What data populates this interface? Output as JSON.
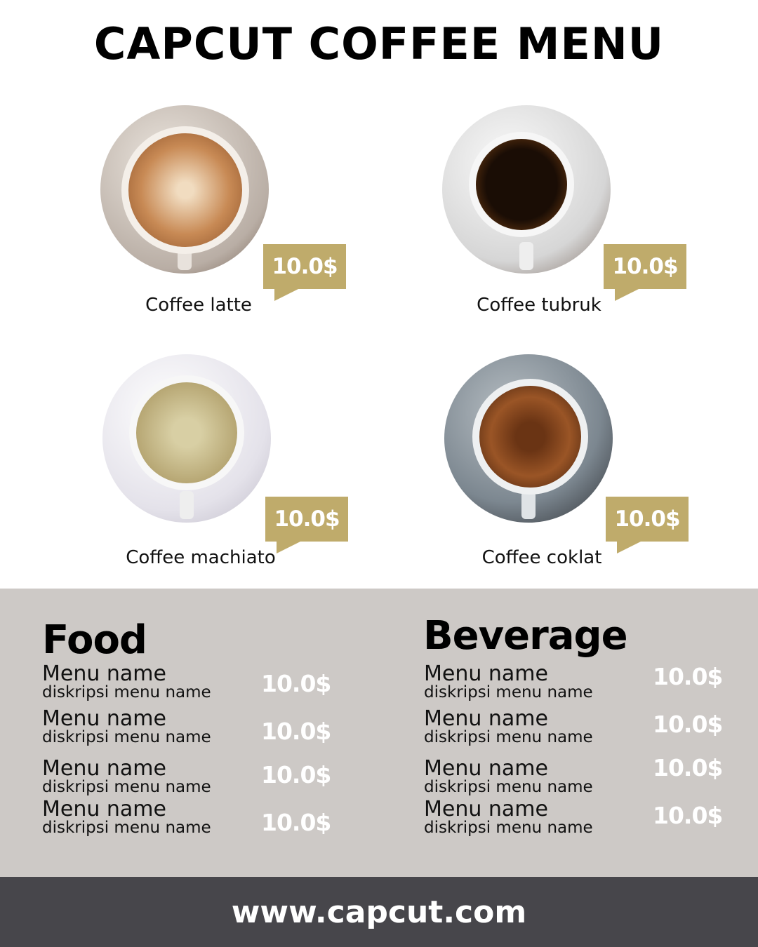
{
  "title": "CAPCUT COFFEE MENU",
  "colors": {
    "accent": "#bfab6b",
    "band": "#cdc9c6",
    "footer": "#47464b"
  },
  "coffees": [
    {
      "name": "Coffee latte",
      "price": "10.0$"
    },
    {
      "name": "Coffee tubruk",
      "price": "10.0$"
    },
    {
      "name": "Coffee machiato",
      "price": "10.0$"
    },
    {
      "name": "Coffee coklat",
      "price": "10.0$"
    }
  ],
  "food": {
    "heading": "Food",
    "items": [
      {
        "name": "Menu name",
        "desc": "diskripsi menu name",
        "price": "10.0$"
      },
      {
        "name": "Menu name",
        "desc": "diskripsi menu name",
        "price": "10.0$"
      },
      {
        "name": "Menu name",
        "desc": "diskripsi menu name",
        "price": "10.0$"
      },
      {
        "name": "Menu name",
        "desc": "diskripsi menu name",
        "price": "10.0$"
      }
    ]
  },
  "beverage": {
    "heading": "Beverage",
    "items": [
      {
        "name": "Menu name",
        "desc": "diskripsi menu name",
        "price": "10.0$"
      },
      {
        "name": "Menu name",
        "desc": "diskripsi menu name",
        "price": "10.0$"
      },
      {
        "name": "Menu name",
        "desc": "diskripsi menu name",
        "price": "10.0$"
      },
      {
        "name": "Menu name",
        "desc": "diskripsi menu name",
        "price": "10.0$"
      }
    ]
  },
  "footer": "www.capcut.com"
}
